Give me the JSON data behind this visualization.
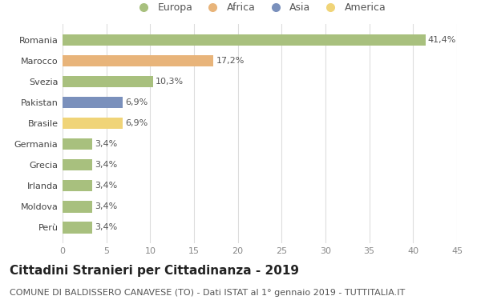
{
  "categories": [
    "Romania",
    "Marocco",
    "Svezia",
    "Pakistan",
    "Brasile",
    "Germania",
    "Grecia",
    "Irlanda",
    "Moldova",
    "Perù"
  ],
  "values": [
    41.4,
    17.2,
    10.3,
    6.9,
    6.9,
    3.4,
    3.4,
    3.4,
    3.4,
    3.4
  ],
  "labels": [
    "41,4%",
    "17,2%",
    "10,3%",
    "6,9%",
    "6,9%",
    "3,4%",
    "3,4%",
    "3,4%",
    "3,4%",
    "3,4%"
  ],
  "colors": [
    "#a8c07e",
    "#e8b47a",
    "#a8c07e",
    "#7a90bc",
    "#f0d478",
    "#a8c07e",
    "#a8c07e",
    "#a8c07e",
    "#a8c07e",
    "#a8c07e"
  ],
  "continents": [
    "Europa",
    "Africa",
    "Asia",
    "America"
  ],
  "legend_colors": [
    "#a8c07e",
    "#e8b47a",
    "#7a90bc",
    "#f0d478"
  ],
  "xlim": [
    0,
    45
  ],
  "xticks": [
    0,
    5,
    10,
    15,
    20,
    25,
    30,
    35,
    40,
    45
  ],
  "title": "Cittadini Stranieri per Cittadinanza - 2019",
  "subtitle": "COMUNE DI BALDISSERO CANAVESE (TO) - Dati ISTAT al 1° gennaio 2019 - TUTTITALIA.IT",
  "background_color": "#ffffff",
  "bar_height": 0.55,
  "title_fontsize": 11,
  "subtitle_fontsize": 8,
  "label_fontsize": 8,
  "ytick_fontsize": 8,
  "xtick_fontsize": 8,
  "legend_fontsize": 9
}
